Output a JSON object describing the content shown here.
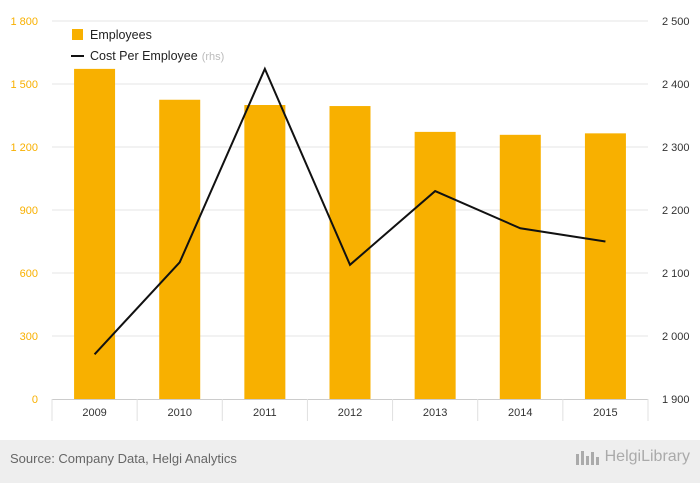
{
  "chart_data": {
    "type": "bar+line",
    "categories": [
      "2009",
      "2010",
      "2011",
      "2012",
      "2013",
      "2014",
      "2015"
    ],
    "series": [
      {
        "name": "Employees",
        "kind": "bar",
        "axis": "left",
        "color": "#F8B000",
        "values": [
          1572,
          1425,
          1400,
          1395,
          1272,
          1258,
          1265
        ]
      },
      {
        "name": "Cost Per Employee",
        "suffix": "(rhs)",
        "kind": "line",
        "axis": "right",
        "color": "#111111",
        "values": [
          1971,
          2117,
          2424,
          2113,
          2230,
          2171,
          2150
        ]
      }
    ],
    "y_left": {
      "range": [
        0,
        1800
      ],
      "ticks": [
        0,
        300,
        600,
        900,
        1200,
        1500,
        1800
      ],
      "tick_labels": [
        "0",
        "300",
        "600",
        "900",
        "1 200",
        "1 500",
        "1 800"
      ],
      "label_color": "#F8B000"
    },
    "y_right": {
      "range": [
        1900,
        2500
      ],
      "ticks": [
        1900,
        2000,
        2100,
        2200,
        2300,
        2400,
        2500
      ],
      "tick_labels": [
        "1 900",
        "2 000",
        "2 100",
        "2 200",
        "2 300",
        "2 400",
        "2 500"
      ],
      "label_color": "#333333"
    },
    "grid": true,
    "legend_position": "top-left"
  },
  "footer": {
    "source": "Source: Company Data, Helgi Analytics",
    "brand": "HelgiLibrary"
  }
}
